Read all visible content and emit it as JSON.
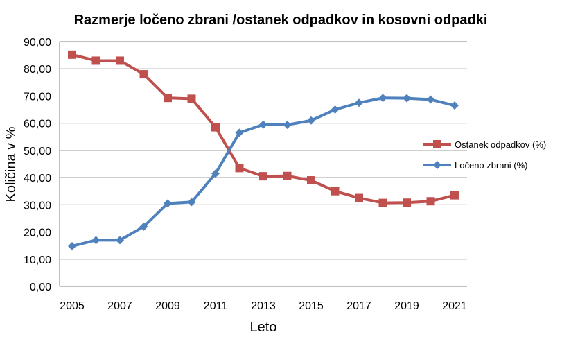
{
  "chart_data": {
    "type": "line",
    "title": "Razmerje ločeno zbrani /ostanek odpadkov in kosovni odpadki",
    "xlabel": "Leto",
    "ylabel": "Količina v %",
    "x": [
      2005,
      2006,
      2007,
      2008,
      2009,
      2010,
      2011,
      2012,
      2013,
      2014,
      2015,
      2016,
      2017,
      2018,
      2019,
      2020,
      2021
    ],
    "x_tick_labels": [
      "2005",
      "2007",
      "2009",
      "2011",
      "2013",
      "2015",
      "2017",
      "2019",
      "2021"
    ],
    "ylim": [
      0,
      90
    ],
    "y_tick_labels": [
      "0,00",
      "10,00",
      "20,00",
      "30,00",
      "40,00",
      "50,00",
      "60,00",
      "70,00",
      "80,00",
      "90,00"
    ],
    "y_ticks": [
      0,
      10,
      20,
      30,
      40,
      50,
      60,
      70,
      80,
      90
    ],
    "grid": "horizontal",
    "legend_position": "right",
    "series": [
      {
        "name": "Ostanek odpadkov  (%)",
        "color": "#C0504D",
        "marker": "square",
        "values": [
          85.2,
          83.0,
          83.0,
          78.0,
          69.3,
          69.0,
          58.5,
          43.5,
          40.5,
          40.6,
          39.0,
          35.0,
          32.5,
          30.7,
          30.8,
          31.3,
          33.5
        ]
      },
      {
        "name": "Ločeno zbrani (%)",
        "color": "#4F81BD",
        "marker": "diamond",
        "values": [
          14.8,
          17.0,
          17.0,
          22.0,
          30.5,
          31.0,
          41.5,
          56.5,
          59.5,
          59.4,
          61.0,
          65.0,
          67.5,
          69.3,
          69.2,
          68.7,
          66.5
        ]
      }
    ]
  }
}
